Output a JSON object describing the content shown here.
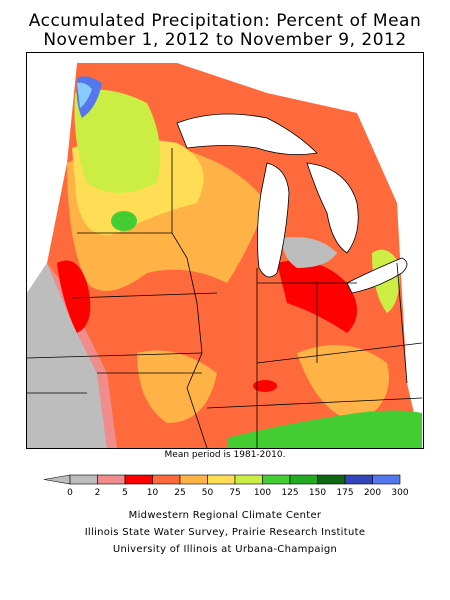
{
  "title_line1": "Accumulated Precipitation: Percent of Mean",
  "title_line2": "November 1, 2012 to November 9, 2012",
  "note": "Mean period is 1981-2010.",
  "legend": {
    "breaks": [
      "0",
      "2",
      "5",
      "10",
      "25",
      "50",
      "75",
      "100",
      "125",
      "150",
      "175",
      "200",
      "300"
    ],
    "colors": [
      "#bdbdbd",
      "#f08c8c",
      "#ff0000",
      "#ff6a3c",
      "#ffb347",
      "#ffdd55",
      "#ccee44",
      "#44cc33",
      "#22aa22",
      "#116611",
      "#3344bb",
      "#5577ee",
      "#88ccff"
    ]
  },
  "credits": [
    "Midwestern Regional Climate Center",
    "Illinois State Water Survey, Prairie Research Institute",
    "University of Illinois at Urbana-Champaign"
  ]
}
